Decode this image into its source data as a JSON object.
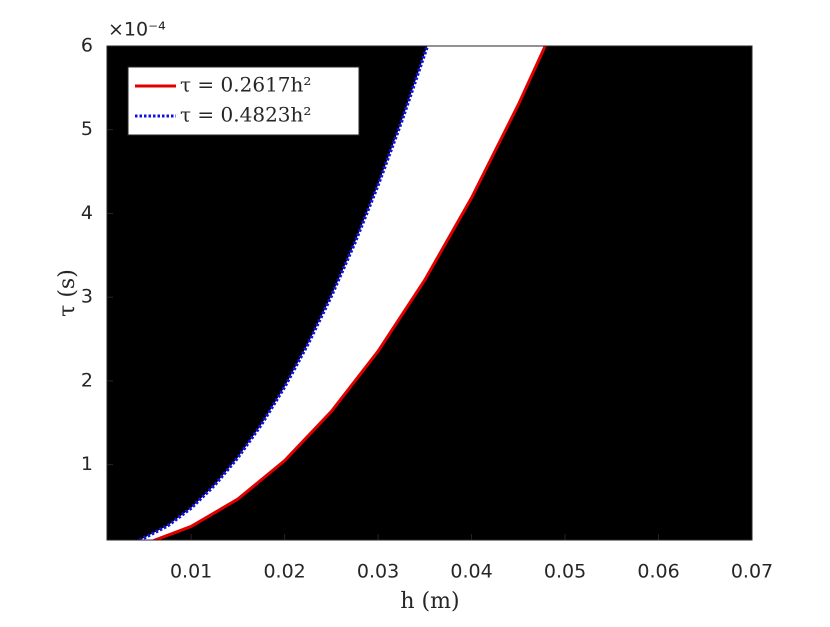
{
  "chart_data": {
    "type": "line",
    "xlabel": "h (m)",
    "ylabel": "τ (s)",
    "y_exponent": "×10⁻⁴",
    "xlim": [
      0.001,
      0.07
    ],
    "ylim": [
      0.1,
      6
    ],
    "xticks": [
      0.01,
      0.02,
      0.03,
      0.04,
      0.05,
      0.06,
      0.07
    ],
    "yticks": [
      1,
      2,
      3,
      4,
      5,
      6
    ],
    "background": "#000000",
    "region_color": "#ffffff",
    "legend": "upper left",
    "series": [
      {
        "name": "τ = 0.2617h²",
        "color": "#e00000",
        "style": "solid",
        "x": [
          0.006,
          0.01,
          0.015,
          0.02,
          0.025,
          0.03,
          0.035,
          0.04,
          0.045,
          0.048
        ],
        "values": [
          0.094,
          0.2617,
          0.589,
          1.047,
          1.636,
          2.355,
          3.206,
          4.187,
          5.299,
          6.03
        ]
      },
      {
        "name": "τ = 0.4823h²",
        "color": "#1010e0",
        "style": "dotted",
        "x": [
          0.0045,
          0.0075,
          0.01,
          0.0125,
          0.015,
          0.0175,
          0.02,
          0.0225,
          0.025,
          0.0275,
          0.03,
          0.0325,
          0.0353
        ],
        "values": [
          0.098,
          0.271,
          0.482,
          0.754,
          1.085,
          1.477,
          1.929,
          2.442,
          3.014,
          3.647,
          4.341,
          5.095,
          6.01
        ]
      }
    ]
  }
}
